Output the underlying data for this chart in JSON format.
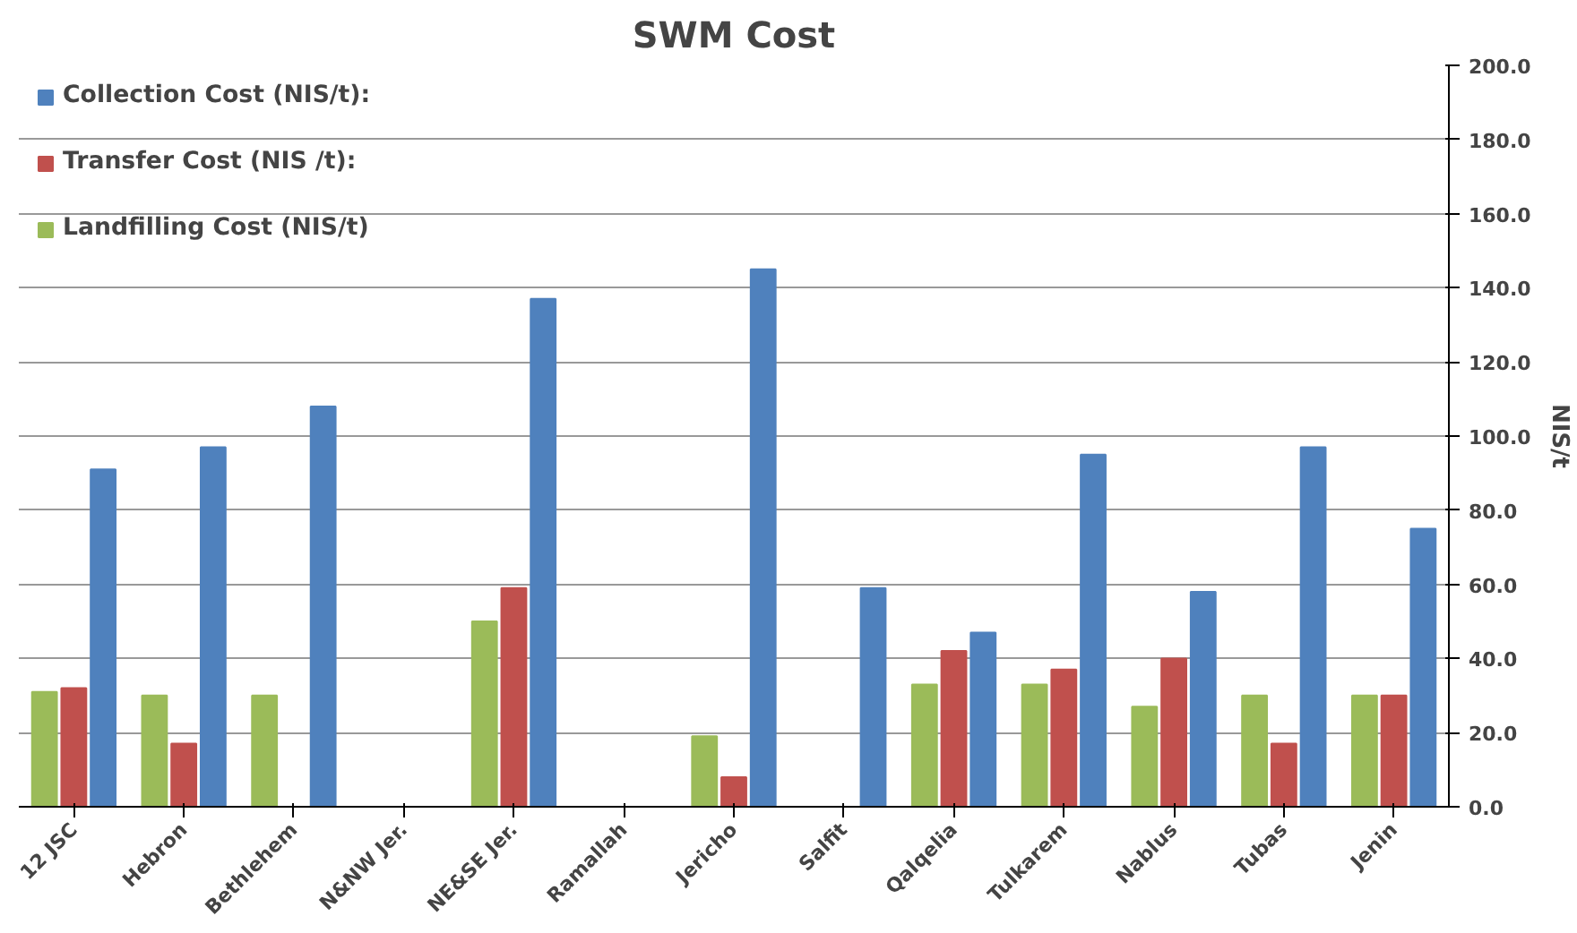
{
  "chart_data": {
    "type": "bar",
    "title": "SWM Cost",
    "ylabel": "NIS/t",
    "categories": [
      "12 JSC",
      "Hebron",
      "Bethlehem",
      "N&NW Jer.",
      "NE&SE Jer.",
      "Ramallah",
      "Jericho",
      "Salfit",
      "Qalqelia",
      "Tulkarem",
      "Nablus",
      "Tubas",
      "Jenin"
    ],
    "series": [
      {
        "name": "Landfilling Cost (NIS/t)",
        "color": "#9bbb59",
        "values": [
          31,
          30,
          30,
          null,
          50,
          null,
          19,
          null,
          33,
          33,
          27,
          30,
          30
        ]
      },
      {
        "name": "Transfer Cost (NIS /t):",
        "color": "#c0504d",
        "values": [
          32,
          17,
          null,
          null,
          59,
          null,
          8,
          null,
          42,
          37,
          40,
          17,
          30
        ]
      },
      {
        "name": "Collection Cost (NIS/t):",
        "color": "#4f81bd",
        "values": [
          91,
          97,
          108,
          null,
          137,
          null,
          145,
          59,
          47,
          95,
          58,
          97,
          75
        ]
      }
    ],
    "ylim": [
      0,
      200
    ],
    "yticks": [
      {
        "value": 0,
        "label": "0.0"
      },
      {
        "value": 20,
        "label": "20.0"
      },
      {
        "value": 40,
        "label": "40.0"
      },
      {
        "value": 60,
        "label": "60.0"
      },
      {
        "value": 80,
        "label": "80.0"
      },
      {
        "value": 100,
        "label": "100.0"
      },
      {
        "value": 120,
        "label": "120.0"
      },
      {
        "value": 140,
        "label": "140.0"
      },
      {
        "value": 160,
        "label": "160.0"
      },
      {
        "value": 180,
        "label": "180.0"
      },
      {
        "value": 200,
        "label": "200.0"
      }
    ],
    "grid": "y",
    "legend": "top left"
  }
}
